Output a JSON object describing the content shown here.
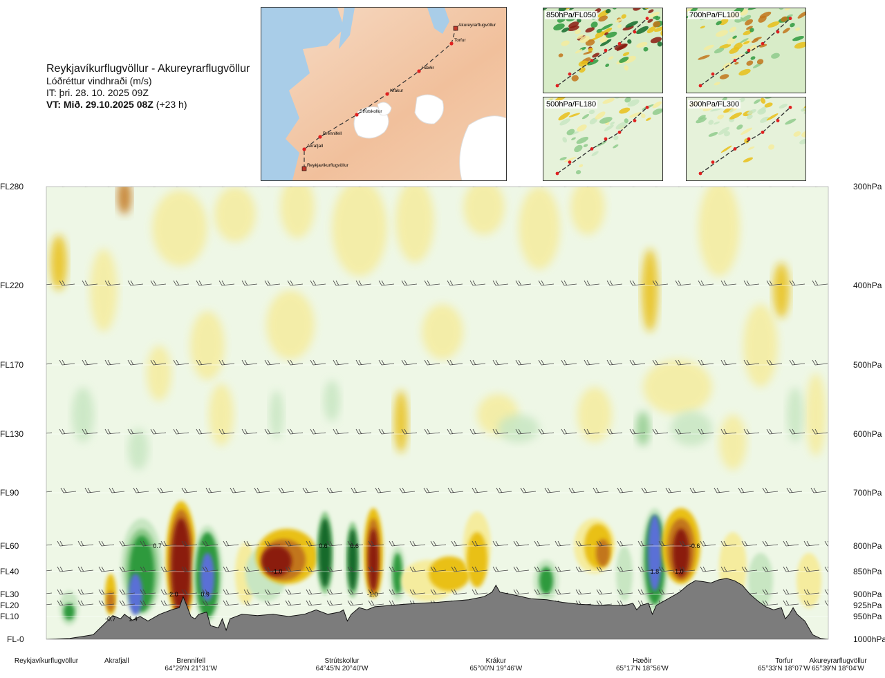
{
  "header": {
    "route": "Reykjavíkurflugvöllur - Akureyrarflugvöllur",
    "quantity": "Lóðréttur vindhraði (m/s)",
    "issue_time": "IT: þri. 28. 10. 2025 09Z",
    "valid_time_bold": "VT: Mið. 29.10.2025 08Z",
    "valid_time_offset": "(+23 h)"
  },
  "map": {
    "places": [
      {
        "name": "Akureyrarflugvöllur",
        "kind": "airport"
      },
      {
        "name": "Torfur",
        "kind": "point"
      },
      {
        "name": "Hæðir",
        "kind": "point"
      },
      {
        "name": "Krákur",
        "kind": "point"
      },
      {
        "name": "Strútskollur",
        "kind": "point"
      },
      {
        "name": "Brennifell",
        "kind": "point"
      },
      {
        "name": "Akrafjall",
        "kind": "point"
      },
      {
        "name": "Reykjavíkurflugvöllur",
        "kind": "airport"
      }
    ]
  },
  "level_panels": [
    {
      "label": "850hPa/FL050"
    },
    {
      "label": "700hPa/FL100"
    },
    {
      "label": "500hPa/FL180"
    },
    {
      "label": "300hPa/FL300"
    }
  ],
  "chart_data": {
    "type": "heatmap",
    "title": "Lóðréttur vindhraði (m/s)",
    "left_axis_labels": [
      "FL280",
      "FL220",
      "FL170",
      "FL130",
      "FL90",
      "FL60",
      "FL40",
      "FL30",
      "FL20",
      "FL10",
      "FL-0"
    ],
    "right_axis_labels": [
      "300hPa",
      "400hPa",
      "500hPa",
      "600hPa",
      "700hPa",
      "800hPa",
      "850hPa",
      "900hPa",
      "925hPa",
      "950hPa",
      "1000hPa"
    ],
    "pressure_levels_hpa": [
      300,
      400,
      500,
      600,
      700,
      800,
      850,
      900,
      925,
      950,
      1000
    ],
    "x_locations": [
      {
        "name": "Reykjavíkurflugvöllur",
        "coord": "",
        "frac": 0.0
      },
      {
        "name": "Akrafjall",
        "coord": "",
        "frac": 0.09
      },
      {
        "name": "Brennifell",
        "coord": "64°29'N 21°31'W",
        "frac": 0.185
      },
      {
        "name": "Strútskollur",
        "coord": "64°45'N 20°40'W",
        "frac": 0.378
      },
      {
        "name": "Krákur",
        "coord": "65°00'N 19°46'W",
        "frac": 0.575
      },
      {
        "name": "Hæðir",
        "coord": "65°17'N 18°56'W",
        "frac": 0.762
      },
      {
        "name": "Torfur",
        "coord": "65°33'N 18°07'W",
        "frac": 0.95
      },
      {
        "name": "Akureyrarflugvöllur",
        "coord": "65°39'N 18°04'W",
        "frac": 1.0
      }
    ],
    "value_labels": [
      {
        "text": "0.7",
        "frac": 0.142,
        "p": 800
      },
      {
        "text": "2.0",
        "frac": 0.163,
        "p": 900
      },
      {
        "text": "0.9",
        "frac": 0.203,
        "p": 900
      },
      {
        "text": "-0.7",
        "frac": 0.082,
        "p": 955
      },
      {
        "text": "1.4",
        "frac": 0.111,
        "p": 955
      },
      {
        "text": "-1.0",
        "frac": 0.295,
        "p": 850
      },
      {
        "text": "0.6",
        "frac": 0.354,
        "p": 800
      },
      {
        "text": "0.6",
        "frac": 0.394,
        "p": 800
      },
      {
        "text": "-1.0",
        "frac": 0.417,
        "p": 900
      },
      {
        "text": "1.8",
        "frac": 0.778,
        "p": 850
      },
      {
        "text": "-1.0",
        "frac": 0.808,
        "p": 850
      },
      {
        "text": "-0.6",
        "frac": 0.829,
        "p": 800
      }
    ],
    "legend": "none",
    "grid": false
  },
  "colors": {
    "strong_down": "#8b1a10",
    "mod_down": "#c2761a",
    "weak_down": "#e9c018",
    "faint_down": "#f5ec9e",
    "neutral": "#eef7e6",
    "faint_up": "#c8e6c2",
    "weak_up": "#8fcb8c",
    "mod_up": "#2f9a3e",
    "strong_up": "#146b2a",
    "max_up": "#5a6fd6",
    "terrain": "#7c7c7c"
  }
}
